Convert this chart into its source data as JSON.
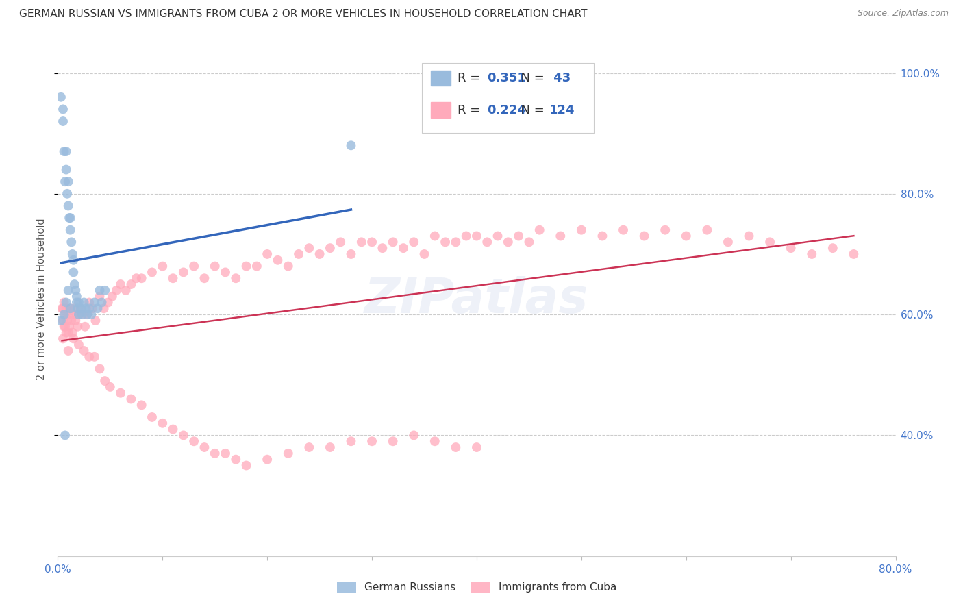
{
  "title": "GERMAN RUSSIAN VS IMMIGRANTS FROM CUBA 2 OR MORE VEHICLES IN HOUSEHOLD CORRELATION CHART",
  "source": "Source: ZipAtlas.com",
  "ylabel": "2 or more Vehicles in Household",
  "legend_label_blue": "German Russians",
  "legend_label_pink": "Immigrants from Cuba",
  "title_color": "#333333",
  "axis_label_color": "#4477CC",
  "blue_color": "#99BBDD",
  "pink_color": "#FFAABB",
  "blue_line_color": "#3366BB",
  "pink_line_color": "#CC3355",
  "watermark": "ZIPatlas",
  "xlim": [
    0.0,
    0.8
  ],
  "ylim": [
    0.2,
    1.05
  ],
  "blue_scatter_x": [
    0.003,
    0.005,
    0.005,
    0.006,
    0.007,
    0.008,
    0.008,
    0.009,
    0.01,
    0.01,
    0.011,
    0.012,
    0.012,
    0.013,
    0.014,
    0.015,
    0.015,
    0.016,
    0.017,
    0.018,
    0.018,
    0.019,
    0.02,
    0.02,
    0.022,
    0.023,
    0.025,
    0.027,
    0.028,
    0.03,
    0.032,
    0.035,
    0.038,
    0.04,
    0.042,
    0.045,
    0.003,
    0.006,
    0.008,
    0.01,
    0.012,
    0.007,
    0.28
  ],
  "blue_scatter_y": [
    0.96,
    0.94,
    0.92,
    0.87,
    0.82,
    0.87,
    0.84,
    0.8,
    0.82,
    0.78,
    0.76,
    0.76,
    0.74,
    0.72,
    0.7,
    0.69,
    0.67,
    0.65,
    0.64,
    0.63,
    0.62,
    0.61,
    0.62,
    0.6,
    0.61,
    0.6,
    0.62,
    0.61,
    0.6,
    0.61,
    0.6,
    0.62,
    0.61,
    0.64,
    0.62,
    0.64,
    0.59,
    0.6,
    0.62,
    0.64,
    0.61,
    0.4,
    0.88
  ],
  "pink_scatter_x": [
    0.004,
    0.005,
    0.005,
    0.006,
    0.006,
    0.007,
    0.007,
    0.008,
    0.008,
    0.009,
    0.01,
    0.01,
    0.011,
    0.012,
    0.013,
    0.014,
    0.015,
    0.016,
    0.017,
    0.018,
    0.019,
    0.02,
    0.022,
    0.024,
    0.026,
    0.028,
    0.03,
    0.033,
    0.036,
    0.04,
    0.044,
    0.048,
    0.052,
    0.056,
    0.06,
    0.065,
    0.07,
    0.075,
    0.08,
    0.09,
    0.1,
    0.11,
    0.12,
    0.13,
    0.14,
    0.15,
    0.16,
    0.17,
    0.18,
    0.19,
    0.2,
    0.21,
    0.22,
    0.23,
    0.24,
    0.25,
    0.26,
    0.27,
    0.28,
    0.29,
    0.3,
    0.31,
    0.32,
    0.33,
    0.34,
    0.35,
    0.36,
    0.37,
    0.38,
    0.39,
    0.4,
    0.41,
    0.42,
    0.43,
    0.44,
    0.45,
    0.46,
    0.48,
    0.5,
    0.52,
    0.54,
    0.56,
    0.58,
    0.6,
    0.62,
    0.64,
    0.66,
    0.68,
    0.7,
    0.72,
    0.74,
    0.76,
    0.005,
    0.01,
    0.015,
    0.02,
    0.025,
    0.03,
    0.035,
    0.04,
    0.045,
    0.05,
    0.06,
    0.07,
    0.08,
    0.09,
    0.1,
    0.11,
    0.12,
    0.13,
    0.14,
    0.15,
    0.16,
    0.17,
    0.18,
    0.2,
    0.22,
    0.24,
    0.26,
    0.28,
    0.3,
    0.32,
    0.34,
    0.36,
    0.38,
    0.4
  ],
  "pink_scatter_y": [
    0.61,
    0.59,
    0.61,
    0.58,
    0.62,
    0.6,
    0.58,
    0.61,
    0.57,
    0.59,
    0.6,
    0.57,
    0.58,
    0.61,
    0.59,
    0.57,
    0.6,
    0.61,
    0.59,
    0.6,
    0.58,
    0.6,
    0.61,
    0.6,
    0.58,
    0.6,
    0.62,
    0.61,
    0.59,
    0.63,
    0.61,
    0.62,
    0.63,
    0.64,
    0.65,
    0.64,
    0.65,
    0.66,
    0.66,
    0.67,
    0.68,
    0.66,
    0.67,
    0.68,
    0.66,
    0.68,
    0.67,
    0.66,
    0.68,
    0.68,
    0.7,
    0.69,
    0.68,
    0.7,
    0.71,
    0.7,
    0.71,
    0.72,
    0.7,
    0.72,
    0.72,
    0.71,
    0.72,
    0.71,
    0.72,
    0.7,
    0.73,
    0.72,
    0.72,
    0.73,
    0.73,
    0.72,
    0.73,
    0.72,
    0.73,
    0.72,
    0.74,
    0.73,
    0.74,
    0.73,
    0.74,
    0.73,
    0.74,
    0.73,
    0.74,
    0.72,
    0.73,
    0.72,
    0.71,
    0.7,
    0.71,
    0.7,
    0.56,
    0.54,
    0.56,
    0.55,
    0.54,
    0.53,
    0.53,
    0.51,
    0.49,
    0.48,
    0.47,
    0.46,
    0.45,
    0.43,
    0.42,
    0.41,
    0.4,
    0.39,
    0.38,
    0.37,
    0.37,
    0.36,
    0.35,
    0.36,
    0.37,
    0.38,
    0.38,
    0.39,
    0.39,
    0.39,
    0.4,
    0.39,
    0.38,
    0.38
  ]
}
